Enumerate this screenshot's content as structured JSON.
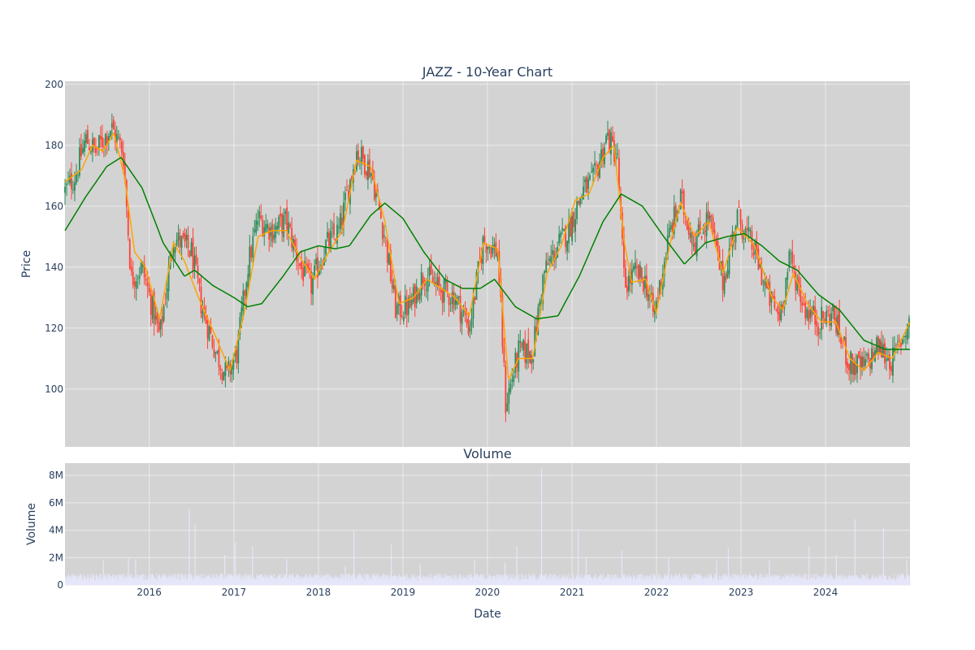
{
  "chart_data": [
    {
      "type": "candlestick",
      "title": "JAZZ - 10-Year Chart",
      "ylabel": "Price",
      "ylim": [
        81,
        201
      ],
      "x_range": [
        "2015-01-02",
        "2024-12-31"
      ],
      "yticks": [
        100,
        120,
        140,
        160,
        180,
        200
      ],
      "xticks": [
        "2016",
        "2017",
        "2018",
        "2019",
        "2020",
        "2021",
        "2022",
        "2023",
        "2024"
      ],
      "grid": true,
      "legend": "none",
      "colors": {
        "up": "#2e8b57",
        "down": "#ff4136",
        "short_ma": "#ffa500",
        "long_ma": "#008000",
        "plot_bg": "#d3d3d3",
        "grid": "#ebebeb"
      },
      "price_keypoints": [
        [
          "2015-01-02",
          165
        ],
        [
          "2015-02-15",
          170
        ],
        [
          "2015-04-01",
          182
        ],
        [
          "2015-05-15",
          178
        ],
        [
          "2015-07-20",
          186
        ],
        [
          "2015-09-10",
          178
        ],
        [
          "2015-10-15",
          136
        ],
        [
          "2015-12-01",
          140
        ],
        [
          "2016-02-15",
          117
        ],
        [
          "2016-04-15",
          150
        ],
        [
          "2016-07-01",
          145
        ],
        [
          "2016-08-15",
          127
        ],
        [
          "2016-10-15",
          112
        ],
        [
          "2016-12-01",
          104
        ],
        [
          "2017-01-15",
          112
        ],
        [
          "2017-03-01",
          140
        ],
        [
          "2017-04-15",
          156
        ],
        [
          "2017-06-15",
          152
        ],
        [
          "2017-08-15",
          155
        ],
        [
          "2017-10-15",
          140
        ],
        [
          "2017-12-01",
          134
        ],
        [
          "2018-02-01",
          147
        ],
        [
          "2018-04-01",
          152
        ],
        [
          "2018-06-15",
          178
        ],
        [
          "2018-08-15",
          172
        ],
        [
          "2018-10-15",
          150
        ],
        [
          "2018-12-01",
          126
        ],
        [
          "2019-02-01",
          127
        ],
        [
          "2019-04-01",
          138
        ],
        [
          "2019-06-01",
          133
        ],
        [
          "2019-08-15",
          130
        ],
        [
          "2019-10-15",
          120
        ],
        [
          "2019-12-15",
          149
        ],
        [
          "2020-02-15",
          145
        ],
        [
          "2020-03-20",
          95
        ],
        [
          "2020-05-15",
          112
        ],
        [
          "2020-07-15",
          112
        ],
        [
          "2020-09-01",
          138
        ],
        [
          "2020-11-01",
          147
        ],
        [
          "2020-12-15",
          152
        ],
        [
          "2021-02-15",
          165
        ],
        [
          "2021-04-01",
          168
        ],
        [
          "2021-06-01",
          183
        ],
        [
          "2021-07-15",
          176
        ],
        [
          "2021-08-15",
          134
        ],
        [
          "2021-10-01",
          138
        ],
        [
          "2021-11-15",
          135
        ],
        [
          "2021-12-20",
          124
        ],
        [
          "2022-03-01",
          152
        ],
        [
          "2022-04-15",
          162
        ],
        [
          "2022-06-15",
          148
        ],
        [
          "2022-08-15",
          157
        ],
        [
          "2022-10-15",
          135
        ],
        [
          "2022-12-15",
          157
        ],
        [
          "2023-03-01",
          145
        ],
        [
          "2023-05-01",
          130
        ],
        [
          "2023-06-15",
          124
        ],
        [
          "2023-08-01",
          143
        ],
        [
          "2023-10-01",
          127
        ],
        [
          "2023-12-01",
          122
        ],
        [
          "2024-02-01",
          125
        ],
        [
          "2024-04-15",
          108
        ],
        [
          "2024-06-15",
          107
        ],
        [
          "2024-08-15",
          114
        ],
        [
          "2024-10-15",
          109
        ],
        [
          "2024-12-31",
          123
        ]
      ],
      "short_ma_keypoints": [
        [
          "2015-01-02",
          168
        ],
        [
          "2015-03-15",
          172
        ],
        [
          "2015-05-01",
          180
        ],
        [
          "2015-06-15",
          178
        ],
        [
          "2015-08-01",
          184
        ],
        [
          "2015-09-15",
          170
        ],
        [
          "2015-10-30",
          145
        ],
        [
          "2015-12-15",
          140
        ],
        [
          "2016-02-15",
          123
        ],
        [
          "2016-04-15",
          148
        ],
        [
          "2016-06-01",
          142
        ],
        [
          "2016-08-01",
          130
        ],
        [
          "2016-10-15",
          117
        ],
        [
          "2016-12-15",
          106
        ],
        [
          "2017-02-15",
          125
        ],
        [
          "2017-04-15",
          150
        ],
        [
          "2017-06-15",
          152
        ],
        [
          "2017-08-15",
          152
        ],
        [
          "2017-10-15",
          143
        ],
        [
          "2017-12-15",
          136
        ],
        [
          "2018-02-15",
          145
        ],
        [
          "2018-04-15",
          152
        ],
        [
          "2018-06-15",
          175
        ],
        [
          "2018-08-15",
          173
        ],
        [
          "2018-10-15",
          155
        ],
        [
          "2018-12-15",
          128
        ],
        [
          "2019-02-15",
          130
        ],
        [
          "2019-04-15",
          136
        ],
        [
          "2019-06-15",
          133
        ],
        [
          "2019-08-15",
          130
        ],
        [
          "2019-10-15",
          124
        ],
        [
          "2019-12-15",
          148
        ],
        [
          "2020-02-15",
          146
        ],
        [
          "2020-04-01",
          103
        ],
        [
          "2020-05-15",
          110
        ],
        [
          "2020-07-15",
          110
        ],
        [
          "2020-09-15",
          138
        ],
        [
          "2020-11-15",
          147
        ],
        [
          "2021-01-15",
          162
        ],
        [
          "2021-03-15",
          164
        ],
        [
          "2021-05-15",
          176
        ],
        [
          "2021-07-01",
          180
        ],
        [
          "2021-08-15",
          148
        ],
        [
          "2021-09-15",
          135
        ],
        [
          "2021-11-15",
          136
        ],
        [
          "2021-12-31",
          125
        ],
        [
          "2022-03-01",
          148
        ],
        [
          "2022-04-15",
          161
        ],
        [
          "2022-06-15",
          150
        ],
        [
          "2022-08-15",
          155
        ],
        [
          "2022-10-15",
          138
        ],
        [
          "2022-12-15",
          153
        ],
        [
          "2023-03-01",
          147
        ],
        [
          "2023-05-15",
          130
        ],
        [
          "2023-07-01",
          126
        ],
        [
          "2023-08-15",
          138
        ],
        [
          "2023-10-15",
          128
        ],
        [
          "2023-12-15",
          122
        ],
        [
          "2024-02-15",
          122
        ],
        [
          "2024-04-15",
          110
        ],
        [
          "2024-06-15",
          106
        ],
        [
          "2024-08-15",
          112
        ],
        [
          "2024-10-15",
          110
        ],
        [
          "2024-12-31",
          122
        ]
      ],
      "long_ma_keypoints": [
        [
          "2015-01-02",
          152
        ],
        [
          "2015-04-01",
          163
        ],
        [
          "2015-07-01",
          173
        ],
        [
          "2015-09-01",
          176
        ],
        [
          "2015-12-01",
          166
        ],
        [
          "2016-03-01",
          148
        ],
        [
          "2016-06-01",
          137
        ],
        [
          "2016-07-15",
          139
        ],
        [
          "2016-10-01",
          134
        ],
        [
          "2017-01-01",
          130
        ],
        [
          "2017-03-01",
          127
        ],
        [
          "2017-05-01",
          128
        ],
        [
          "2017-08-01",
          137
        ],
        [
          "2017-10-15",
          145
        ],
        [
          "2018-01-01",
          147
        ],
        [
          "2018-03-15",
          146
        ],
        [
          "2018-05-15",
          147
        ],
        [
          "2018-08-15",
          157
        ],
        [
          "2018-10-15",
          161
        ],
        [
          "2019-01-01",
          156
        ],
        [
          "2019-04-01",
          145
        ],
        [
          "2019-07-01",
          136
        ],
        [
          "2019-09-15",
          133
        ],
        [
          "2019-12-01",
          133
        ],
        [
          "2020-02-01",
          136
        ],
        [
          "2020-05-01",
          127
        ],
        [
          "2020-08-01",
          123
        ],
        [
          "2020-11-01",
          124
        ],
        [
          "2021-02-01",
          137
        ],
        [
          "2021-05-15",
          155
        ],
        [
          "2021-08-01",
          164
        ],
        [
          "2021-11-01",
          160
        ],
        [
          "2022-02-01",
          150
        ],
        [
          "2022-05-01",
          141
        ],
        [
          "2022-08-01",
          148
        ],
        [
          "2022-11-01",
          150
        ],
        [
          "2023-01-15",
          151
        ],
        [
          "2023-04-01",
          147
        ],
        [
          "2023-06-15",
          142
        ],
        [
          "2023-09-01",
          139
        ],
        [
          "2023-12-01",
          131
        ],
        [
          "2024-03-01",
          126
        ],
        [
          "2024-06-15",
          116
        ],
        [
          "2024-09-15",
          113
        ],
        [
          "2024-12-31",
          113
        ]
      ]
    },
    {
      "type": "bar",
      "title": "Volume",
      "xlabel": "Date",
      "ylabel": "Volume",
      "ylim": [
        0,
        8900000
      ],
      "yticks": [
        0,
        2000000,
        4000000,
        6000000,
        8000000
      ],
      "ytick_labels": [
        "0",
        "2M",
        "4M",
        "6M",
        "8M"
      ],
      "xticks": [
        "2016",
        "2017",
        "2018",
        "2019",
        "2020",
        "2021",
        "2022",
        "2023",
        "2024"
      ],
      "grid": true,
      "colors": {
        "bar": "#e6e6fa",
        "plot_bg": "#d3d3d3",
        "grid": "#ebebeb"
      },
      "baseline_volume": 600000,
      "spikes": [
        [
          "2015-06-15",
          1800000
        ],
        [
          "2015-10-01",
          2000000
        ],
        [
          "2015-11-01",
          1900000
        ],
        [
          "2016-06-20",
          5600000
        ],
        [
          "2016-07-15",
          4400000
        ],
        [
          "2016-11-20",
          2200000
        ],
        [
          "2017-01-05",
          3100000
        ],
        [
          "2017-03-20",
          2800000
        ],
        [
          "2017-08-15",
          1900000
        ],
        [
          "2018-04-25",
          1400000
        ],
        [
          "2018-06-01",
          4000000
        ],
        [
          "2018-11-10",
          3000000
        ],
        [
          "2019-03-15",
          1500000
        ],
        [
          "2019-11-05",
          1800000
        ],
        [
          "2020-03-15",
          1600000
        ],
        [
          "2020-05-05",
          2800000
        ],
        [
          "2020-08-20",
          8500000
        ],
        [
          "2021-01-25",
          4100000
        ],
        [
          "2021-03-01",
          2000000
        ],
        [
          "2021-08-02",
          2500000
        ],
        [
          "2022-02-20",
          2000000
        ],
        [
          "2022-09-15",
          1800000
        ],
        [
          "2022-11-05",
          2700000
        ],
        [
          "2023-05-01",
          1800000
        ],
        [
          "2023-10-20",
          2800000
        ],
        [
          "2024-02-15",
          2200000
        ],
        [
          "2024-05-05",
          4800000
        ],
        [
          "2024-09-05",
          4200000
        ],
        [
          "2024-12-15",
          1800000
        ]
      ]
    }
  ]
}
